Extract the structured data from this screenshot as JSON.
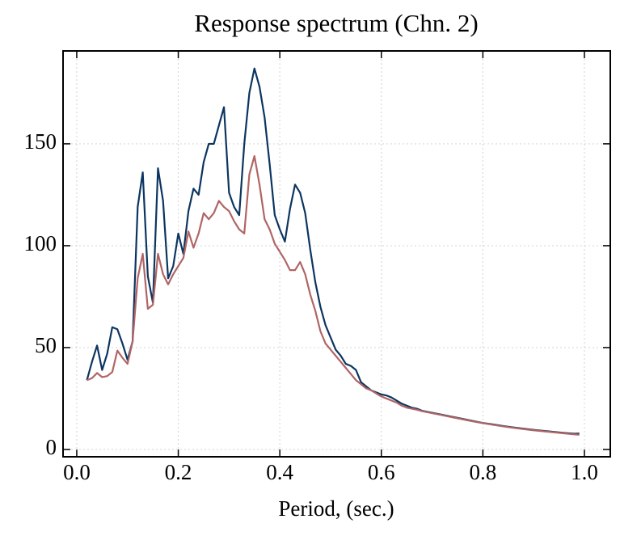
{
  "chart_data": {
    "type": "line",
    "title": "Response spectrum (Chn. 2)",
    "x_label": "Period, (sec.)",
    "x": [
      0.02,
      0.03,
      0.04,
      0.05,
      0.06,
      0.07,
      0.08,
      0.09,
      0.1,
      0.11,
      0.12,
      0.13,
      0.14,
      0.15,
      0.16,
      0.17,
      0.18,
      0.19,
      0.2,
      0.21,
      0.22,
      0.23,
      0.24,
      0.25,
      0.26,
      0.27,
      0.28,
      0.29,
      0.3,
      0.31,
      0.32,
      0.33,
      0.34,
      0.35,
      0.36,
      0.37,
      0.38,
      0.39,
      0.4,
      0.41,
      0.42,
      0.43,
      0.44,
      0.45,
      0.46,
      0.47,
      0.48,
      0.49,
      0.5,
      0.51,
      0.52,
      0.53,
      0.54,
      0.55,
      0.56,
      0.57,
      0.58,
      0.59,
      0.6,
      0.61,
      0.62,
      0.63,
      0.64,
      0.65,
      0.66,
      0.67,
      0.68,
      0.7,
      0.72,
      0.74,
      0.76,
      0.78,
      0.8,
      0.82,
      0.84,
      0.86,
      0.88,
      0.9,
      0.92,
      0.94,
      0.96,
      0.98,
      0.99
    ],
    "series": [
      {
        "color": "#0c3560",
        "values": [
          34,
          43,
          51,
          39,
          47,
          60,
          59,
          52,
          44,
          53,
          119,
          136,
          85,
          72,
          138,
          122,
          84,
          90,
          106,
          96,
          117,
          128,
          125,
          141,
          150,
          150,
          159,
          168,
          126,
          119,
          115,
          150,
          175,
          187,
          178,
          163,
          140,
          115,
          108,
          102,
          118,
          130,
          126,
          116,
          98,
          82,
          70,
          61,
          55,
          49,
          46,
          42,
          41,
          39,
          33,
          31,
          29,
          28,
          27,
          26.5,
          25.5,
          24,
          22.5,
          21.5,
          20.5,
          20,
          19,
          18,
          17,
          16,
          15,
          14,
          13,
          12.3,
          11.5,
          10.8,
          10.2,
          9.6,
          9.1,
          8.6,
          8.1,
          7.7,
          7.8
        ]
      },
      {
        "color": "#b06565",
        "values": [
          34,
          35,
          37.5,
          35.5,
          36,
          38,
          48.5,
          45,
          42,
          53,
          84,
          96,
          69,
          71,
          96,
          86,
          81,
          86,
          90,
          94,
          107,
          99,
          106,
          116,
          113,
          116,
          122,
          119,
          117,
          112,
          108,
          106,
          135,
          144,
          130,
          113,
          108,
          101,
          97,
          93,
          88,
          88,
          92,
          86,
          76,
          68,
          58,
          52,
          49,
          46,
          43,
          40,
          37,
          34,
          32,
          30,
          29,
          27.5,
          26,
          25,
          24,
          23,
          21.5,
          20.5,
          20,
          19.5,
          18.8,
          17.8,
          16.8,
          15.8,
          14.8,
          13.8,
          12.9,
          12.1,
          11.3,
          10.6,
          10,
          9.4,
          8.9,
          8.4,
          7.9,
          7.4,
          7.2
        ]
      }
    ],
    "xlim": [
      -0.027,
      1.051
    ],
    "ylim": [
      -3.6,
      195.6
    ],
    "xticks": [
      {
        "value": 0,
        "label": "0.0"
      },
      0.2,
      0.4,
      0.6,
      0.8,
      {
        "value": 1,
        "label": "1.0"
      }
    ],
    "yticks": [
      0,
      50,
      100,
      150
    ],
    "grid": true
  }
}
